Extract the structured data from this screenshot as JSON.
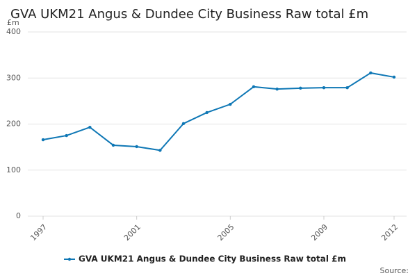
{
  "chart_data": {
    "type": "line",
    "title": "GVA UKM21 Angus & Dundee City Business Raw total £m",
    "y_label": "£m",
    "source": "Source:",
    "x": [
      1997,
      1998,
      1999,
      2000,
      2001,
      2002,
      2003,
      2004,
      2005,
      2006,
      2007,
      2008,
      2009,
      2010,
      2011,
      2012
    ],
    "series": [
      {
        "name": "GVA UKM21 Angus & Dundee City Business Raw total £m",
        "color": "#0e77b5",
        "values": [
          166,
          175,
          193,
          154,
          151,
          143,
          201,
          225,
          243,
          281,
          276,
          278,
          279,
          279,
          311,
          302
        ]
      }
    ],
    "xlim": [
      1997,
      2012
    ],
    "xticks": [
      1997,
      2001,
      2005,
      2009,
      2012
    ],
    "ylim": [
      0,
      400
    ],
    "yticks": [
      0,
      100,
      200,
      300,
      400
    ],
    "grid": true
  }
}
